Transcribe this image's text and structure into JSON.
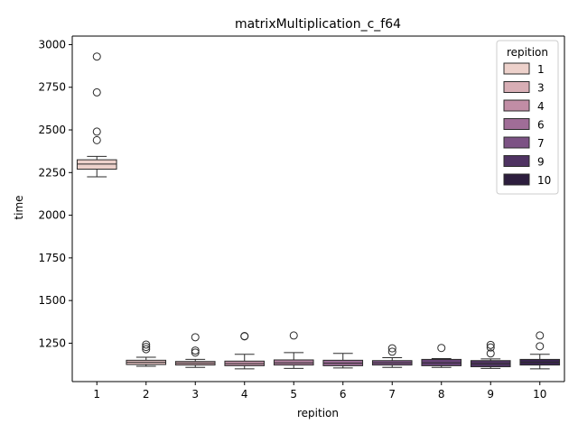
{
  "chart_data": {
    "type": "box",
    "title": "matrixMultiplication_c_f64",
    "xlabel": "repition",
    "ylabel": "time",
    "categories": [
      "1",
      "2",
      "3",
      "4",
      "5",
      "6",
      "7",
      "8",
      "9",
      "10"
    ],
    "ylim": [
      1025,
      3050
    ],
    "yticks": [
      1250,
      1500,
      1750,
      2000,
      2250,
      2500,
      2750,
      3000
    ],
    "boxes": [
      {
        "category": "1",
        "whislo": 2225,
        "q1": 2270,
        "med": 2300,
        "q3": 2325,
        "whishi": 2345,
        "fliers": [
          2440,
          2490,
          2720,
          2930
        ]
      },
      {
        "category": "2",
        "whislo": 1115,
        "q1": 1125,
        "med": 1138,
        "q3": 1150,
        "whishi": 1168,
        "fliers": [
          1215,
          1228,
          1242
        ]
      },
      {
        "category": "3",
        "whislo": 1108,
        "q1": 1122,
        "med": 1133,
        "q3": 1143,
        "whishi": 1155,
        "fliers": [
          1195,
          1207,
          1285
        ]
      },
      {
        "category": "4",
        "whislo": 1100,
        "q1": 1118,
        "med": 1130,
        "q3": 1145,
        "whishi": 1185,
        "fliers": [
          1290,
          1292
        ]
      },
      {
        "category": "5",
        "whislo": 1102,
        "q1": 1122,
        "med": 1135,
        "q3": 1152,
        "whishi": 1195,
        "fliers": [
          1295
        ]
      },
      {
        "category": "6",
        "whislo": 1105,
        "q1": 1118,
        "med": 1133,
        "q3": 1150,
        "whishi": 1190,
        "fliers": []
      },
      {
        "category": "7",
        "whislo": 1108,
        "q1": 1122,
        "med": 1135,
        "q3": 1148,
        "whishi": 1165,
        "fliers": [
          1200,
          1220
        ]
      },
      {
        "category": "8",
        "whislo": 1108,
        "q1": 1118,
        "med": 1135,
        "q3": 1155,
        "whishi": 1160,
        "fliers": [
          1222
        ]
      },
      {
        "category": "9",
        "whislo": 1102,
        "q1": 1112,
        "med": 1130,
        "q3": 1148,
        "whishi": 1158,
        "fliers": [
          1190,
          1225,
          1240
        ]
      },
      {
        "category": "10",
        "whislo": 1100,
        "q1": 1122,
        "med": 1138,
        "q3": 1155,
        "whishi": 1185,
        "fliers": [
          1232,
          1295
        ]
      }
    ],
    "legend": {
      "title": "repition",
      "placement": "top-right",
      "entries": [
        {
          "label": "1",
          "color": "#edd1cb"
        },
        {
          "label": "3",
          "color": "#d8aeb5"
        },
        {
          "label": "4",
          "color": "#c18da5"
        },
        {
          "label": "6",
          "color": "#a06d97"
        },
        {
          "label": "7",
          "color": "#7c5284"
        },
        {
          "label": "9",
          "color": "#4f3362"
        },
        {
          "label": "10",
          "color": "#2d1e3e"
        }
      ]
    },
    "box_colors": [
      "#edd1cb",
      "#dfbcbd",
      "#d4a9b2",
      "#c595ab",
      "#b17f9f",
      "#9b6b95",
      "#805587",
      "#674377",
      "#4f3362",
      "#3a2550"
    ],
    "grid": false
  }
}
